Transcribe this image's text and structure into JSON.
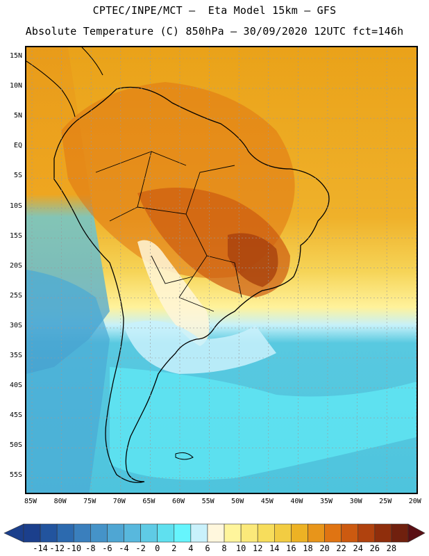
{
  "header": {
    "line1": "CPTEC/INPE/MCT –  Eta Model 15km – GFS",
    "line2": "Absolute Temperature (C) 850hPa – 30/09/2020 12UTC fct=146h"
  },
  "axes": {
    "lat_labels": [
      "15N",
      "10N",
      "5N",
      "EQ",
      "5S",
      "10S",
      "15S",
      "20S",
      "25S",
      "30S",
      "35S",
      "40S",
      "45S",
      "50S",
      "55S"
    ],
    "lon_labels": [
      "85W",
      "80W",
      "75W",
      "70W",
      "65W",
      "60W",
      "55W",
      "50W",
      "45W",
      "40W",
      "35W",
      "30W",
      "25W",
      "20W"
    ],
    "gridlines": true
  },
  "colorbar": {
    "labels": [
      "-14",
      "-12",
      "-10",
      "-8",
      "-6",
      "-4",
      "-2",
      "0",
      "2",
      "4",
      "6",
      "8",
      "10",
      "12",
      "14",
      "16",
      "18",
      "20",
      "22",
      "24",
      "26",
      "28"
    ],
    "colors": [
      "#1b3f8c",
      "#22549e",
      "#2c6aaf",
      "#3a7fbd",
      "#4593c8",
      "#4fa6d3",
      "#58b8dd",
      "#5fcbe5",
      "#5fe0ef",
      "#66f5fd",
      "#c9f1fb",
      "#fff7dd",
      "#fff59c",
      "#fbe97a",
      "#f7dd5c",
      "#f2cc42",
      "#edb224",
      "#e8951a",
      "#e07412",
      "#cc5a10",
      "#b0420e",
      "#8f2e0c",
      "#70200e"
    ],
    "under_color": "#1b3f8c",
    "over_color": "#5a0f14"
  },
  "map": {
    "ocean_color_north": "#f0a814",
    "ocean_color_south": "#4fc9df",
    "coastline_color": "#000000"
  }
}
